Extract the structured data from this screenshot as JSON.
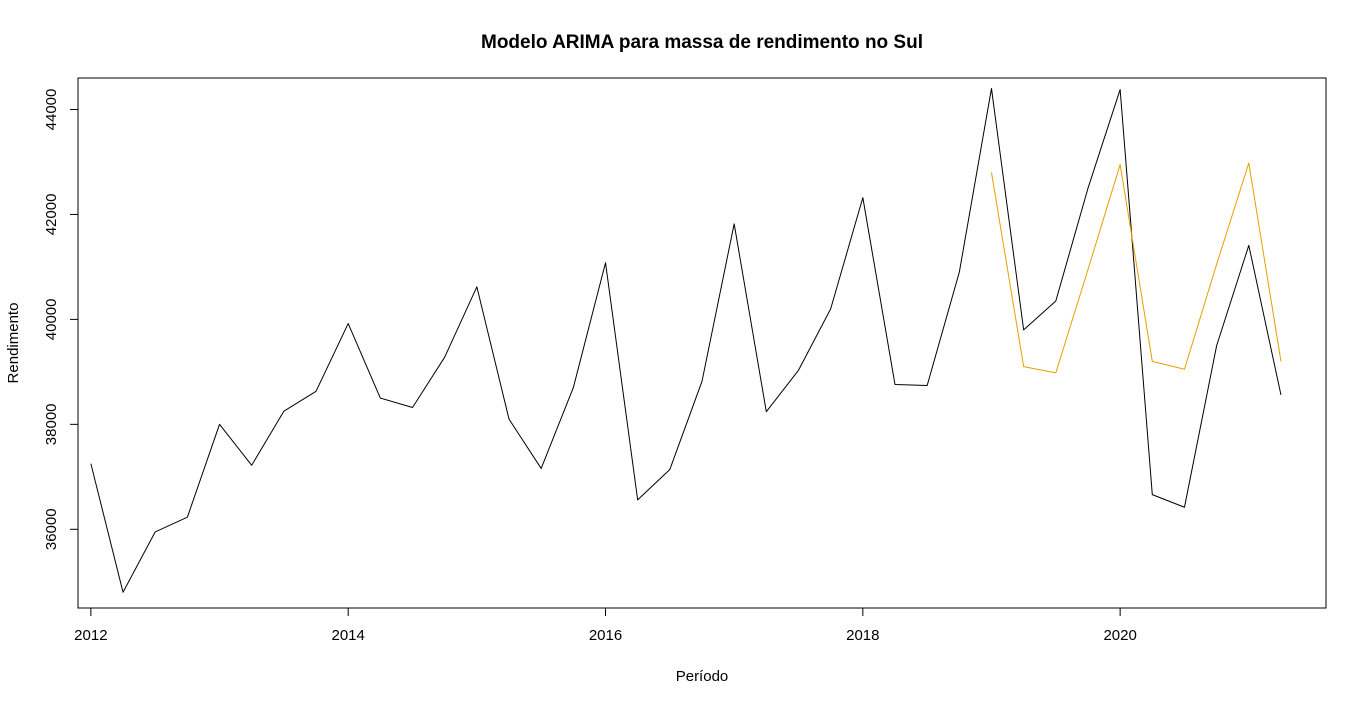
{
  "chart_data": {
    "type": "line",
    "title": "Modelo ARIMA para massa de rendimento no Sul",
    "xlabel": "Período",
    "ylabel": "Rendimento",
    "xlim": [
      2011.9,
      2021.6
    ],
    "ylim": [
      34500,
      44600
    ],
    "x_ticks": [
      2012,
      2014,
      2016,
      2018,
      2020
    ],
    "x_tick_labels": [
      "2012",
      "2014",
      "2016",
      "2018",
      "2020"
    ],
    "y_ticks": [
      36000,
      38000,
      40000,
      42000,
      44000
    ],
    "y_tick_labels": [
      "36000",
      "38000",
      "40000",
      "42000",
      "44000"
    ],
    "grid": false,
    "legend": "none",
    "series": [
      {
        "color": "#000000",
        "x": [
          2012.0,
          2012.25,
          2012.5,
          2012.75,
          2013.0,
          2013.25,
          2013.5,
          2013.75,
          2014.0,
          2014.25,
          2014.5,
          2014.75,
          2015.0,
          2015.25,
          2015.5,
          2015.75,
          2016.0,
          2016.25,
          2016.5,
          2016.75,
          2017.0,
          2017.25,
          2017.5,
          2017.75,
          2018.0,
          2018.25,
          2018.5,
          2018.75,
          2019.0,
          2019.25,
          2019.5,
          2019.75,
          2020.0,
          2020.25,
          2020.5,
          2020.75,
          2021.0,
          2021.25
        ],
        "y": [
          37250,
          34800,
          35950,
          36230,
          38000,
          37220,
          38250,
          38630,
          39920,
          38500,
          38320,
          39280,
          40620,
          38100,
          37160,
          38700,
          41080,
          36560,
          37140,
          38820,
          41820,
          38240,
          39030,
          40200,
          42320,
          38760,
          38740,
          40900,
          44400,
          39800,
          40350,
          42500,
          44380,
          36660,
          36420,
          39500,
          41410,
          38560
        ]
      },
      {
        "color": "#E69F00",
        "x": [
          2019.0,
          2019.25,
          2019.5,
          2019.75,
          2020.0,
          2020.25,
          2020.5,
          2020.75,
          2021.0,
          2021.25
        ],
        "y": [
          42800,
          39100,
          38980,
          40950,
          42950,
          39200,
          39050,
          41050,
          42980,
          39200
        ]
      }
    ]
  }
}
